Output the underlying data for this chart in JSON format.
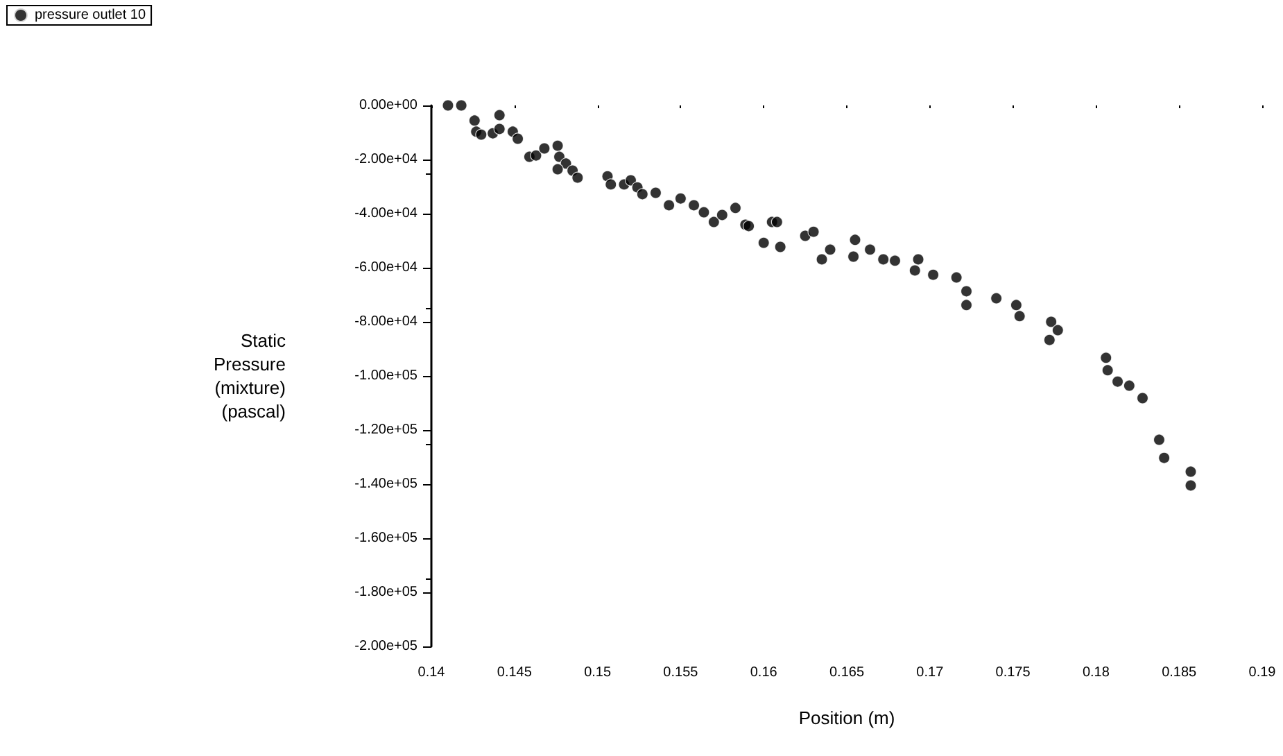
{
  "chart_data": {
    "type": "scatter",
    "xlabel": "Position (m)",
    "ylabel": "Static Pressure (mixture) (pascal)",
    "legend": "top left",
    "grid": false,
    "marker": "circle",
    "xlim": [
      0.14,
      0.19
    ],
    "xticks": [
      0.14,
      0.145,
      0.15,
      0.155,
      0.16,
      0.165,
      0.17,
      0.175,
      0.18,
      0.185,
      0.19
    ],
    "ylim": [
      -200000,
      0
    ],
    "yticks": [
      {
        "value": 0,
        "label": "0.00e+00"
      },
      {
        "value": -20000,
        "label": "-2.00e+04"
      },
      {
        "value": -40000,
        "label": "-4.00e+04"
      },
      {
        "value": -60000,
        "label": "-6.00e+04"
      },
      {
        "value": -80000,
        "label": "-8.00e+04"
      },
      {
        "value": -100000,
        "label": "-1.00e+05"
      },
      {
        "value": -120000,
        "label": "-1.20e+05"
      },
      {
        "value": -140000,
        "label": "-1.40e+05"
      },
      {
        "value": -160000,
        "label": "-1.60e+05"
      },
      {
        "value": -180000,
        "label": "-1.80e+05"
      },
      {
        "value": -200000,
        "label": "-2.00e+05"
      }
    ],
    "series": [
      {
        "name": "pressure outlet 10",
        "color": "#000000",
        "x": [
          0.141,
          0.1418,
          0.1426,
          0.1427,
          0.143,
          0.1437,
          0.1441,
          0.1441,
          0.1449,
          0.1452,
          0.1459,
          0.1463,
          0.1468,
          0.1476,
          0.1477,
          0.1481,
          0.1476,
          0.1485,
          0.1488,
          0.1506,
          0.1508,
          0.1516,
          0.152,
          0.1524,
          0.1527,
          0.1535,
          0.1543,
          0.155,
          0.1558,
          0.1564,
          0.157,
          0.1575,
          0.1583,
          0.1589,
          0.16,
          0.1605,
          0.1591,
          0.1608,
          0.161,
          0.1625,
          0.163,
          0.1635,
          0.164,
          0.1655,
          0.1654,
          0.1664,
          0.1672,
          0.1679,
          0.1693,
          0.1691,
          0.1702,
          0.1716,
          0.1722,
          0.1722,
          0.174,
          0.1752,
          0.1754,
          0.1773,
          0.1777,
          0.1772,
          0.1806,
          0.1807,
          0.1813,
          0.182,
          0.1828,
          0.1838,
          0.1841,
          0.1857,
          0.1857
        ],
        "values": [
          0,
          0,
          -5600,
          -9700,
          -10800,
          -10300,
          -3600,
          -8700,
          -9700,
          -12300,
          -19000,
          -18500,
          -15900,
          -14900,
          -19000,
          -21500,
          -23600,
          -24100,
          -26700,
          -26200,
          -29200,
          -29200,
          -27700,
          -30300,
          -32800,
          -32300,
          -36900,
          -34400,
          -36900,
          -39500,
          -43100,
          -40500,
          -37900,
          -44100,
          -50800,
          -43100,
          -44600,
          -43100,
          -52300,
          -48200,
          -46700,
          -56900,
          -53300,
          -49700,
          -55900,
          -53300,
          -56900,
          -57400,
          -56900,
          -61000,
          -62600,
          -63600,
          -68700,
          -73800,
          -71300,
          -73800,
          -77900,
          -80000,
          -83100,
          -86700,
          -93300,
          -97900,
          -102100,
          -103600,
          -108200,
          -123600,
          -130300,
          -135400,
          -140500
        ]
      }
    ]
  }
}
